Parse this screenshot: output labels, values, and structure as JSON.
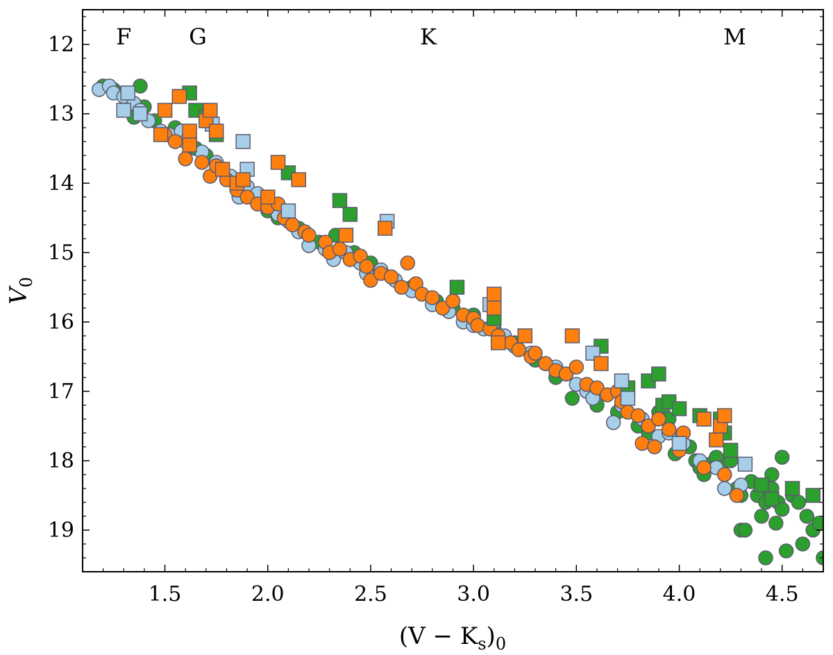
{
  "chart_data": {
    "type": "scatter",
    "title": "",
    "xlabel": "(V − K",
    "xlabel_sub": "s",
    "xlabel_tail": ")",
    "xlabel_sub2": "0",
    "ylabel": "V",
    "ylabel_sub": "0",
    "xlim": [
      1.1,
      4.7
    ],
    "ylim": [
      19.6,
      11.5
    ],
    "y_inverted": true,
    "grid": false,
    "x_ticks": [
      1.5,
      2.0,
      2.5,
      3.0,
      3.5,
      4.0,
      4.5
    ],
    "x_tick_labels": [
      "1.5",
      "2.0",
      "2.5",
      "3.0",
      "3.5",
      "4.0",
      "4.5"
    ],
    "y_ticks": [
      12,
      13,
      14,
      15,
      16,
      17,
      18,
      19
    ],
    "y_tick_labels": [
      "12",
      "13",
      "14",
      "15",
      "16",
      "17",
      "18",
      "19"
    ],
    "spectral_classes": [
      {
        "label": "F",
        "x": 1.3
      },
      {
        "label": "G",
        "x": 1.66
      },
      {
        "label": "K",
        "x": 2.78
      },
      {
        "label": "M",
        "x": 4.27
      }
    ],
    "colors": {
      "green": "#2ca02c",
      "blue": "#a6cee8",
      "orange": "#ff7f0e",
      "edge": "#5a5a6e"
    },
    "series": [
      {
        "name": "green-circles",
        "color": "green",
        "marker": "circle",
        "points": [
          [
            1.2,
            12.6
          ],
          [
            1.25,
            12.65
          ],
          [
            1.3,
            12.7
          ],
          [
            1.32,
            12.8
          ],
          [
            1.38,
            12.6
          ],
          [
            1.35,
            13.05
          ],
          [
            1.4,
            12.9
          ],
          [
            1.45,
            13.1
          ],
          [
            1.55,
            13.2
          ],
          [
            1.65,
            13.5
          ],
          [
            1.7,
            13.6
          ],
          [
            1.8,
            13.9
          ],
          [
            1.9,
            14.1
          ],
          [
            2.0,
            14.4
          ],
          [
            2.05,
            14.5
          ],
          [
            2.15,
            14.65
          ],
          [
            2.25,
            14.85
          ],
          [
            2.33,
            14.75
          ],
          [
            2.42,
            15.0
          ],
          [
            2.5,
            15.15
          ],
          [
            2.6,
            15.35
          ],
          [
            2.7,
            15.5
          ],
          [
            2.82,
            15.7
          ],
          [
            2.9,
            15.8
          ],
          [
            3.0,
            15.9
          ],
          [
            3.1,
            16.1
          ],
          [
            3.2,
            16.3
          ],
          [
            3.3,
            16.55
          ],
          [
            3.4,
            16.8
          ],
          [
            3.48,
            17.1
          ],
          [
            3.55,
            17.0
          ],
          [
            3.6,
            17.2
          ],
          [
            3.7,
            17.3
          ],
          [
            3.75,
            17.0
          ],
          [
            3.8,
            17.5
          ],
          [
            3.85,
            17.6
          ],
          [
            3.9,
            17.3
          ],
          [
            3.95,
            17.4
          ],
          [
            3.98,
            17.9
          ],
          [
            4.0,
            17.7
          ],
          [
            4.05,
            17.8
          ],
          [
            4.08,
            18.0
          ],
          [
            4.1,
            18.1
          ],
          [
            4.12,
            18.2
          ],
          [
            4.15,
            18.05
          ],
          [
            4.18,
            17.95
          ],
          [
            4.2,
            18.1
          ],
          [
            4.22,
            18.2
          ],
          [
            4.25,
            18.0
          ],
          [
            4.28,
            18.4
          ],
          [
            4.3,
            18.5
          ],
          [
            4.3,
            19.0
          ],
          [
            4.32,
            19.0
          ],
          [
            4.35,
            18.3
          ],
          [
            4.38,
            18.5
          ],
          [
            4.4,
            18.8
          ],
          [
            4.42,
            18.6
          ],
          [
            4.42,
            19.4
          ],
          [
            4.45,
            18.2
          ],
          [
            4.45,
            18.4
          ],
          [
            4.47,
            18.9
          ],
          [
            4.48,
            18.6
          ],
          [
            4.5,
            17.95
          ],
          [
            4.5,
            18.7
          ],
          [
            4.52,
            19.3
          ],
          [
            4.55,
            18.5
          ],
          [
            4.58,
            18.6
          ],
          [
            4.6,
            19.2
          ],
          [
            4.62,
            18.8
          ],
          [
            4.65,
            19.0
          ],
          [
            4.68,
            18.9
          ],
          [
            4.7,
            19.4
          ]
        ]
      },
      {
        "name": "blue-circles",
        "color": "blue",
        "marker": "circle",
        "points": [
          [
            1.18,
            12.65
          ],
          [
            1.23,
            12.6
          ],
          [
            1.25,
            12.7
          ],
          [
            1.3,
            12.75
          ],
          [
            1.35,
            12.85
          ],
          [
            1.38,
            12.95
          ],
          [
            1.42,
            13.1
          ],
          [
            1.48,
            13.25
          ],
          [
            1.52,
            13.3
          ],
          [
            1.58,
            13.25
          ],
          [
            1.6,
            13.4
          ],
          [
            1.62,
            13.35
          ],
          [
            1.68,
            13.55
          ],
          [
            1.75,
            13.7
          ],
          [
            1.82,
            13.9
          ],
          [
            1.86,
            14.2
          ],
          [
            1.9,
            14.05
          ],
          [
            1.95,
            14.15
          ],
          [
            2.05,
            14.45
          ],
          [
            2.1,
            14.55
          ],
          [
            2.15,
            14.7
          ],
          [
            2.2,
            14.9
          ],
          [
            2.28,
            14.95
          ],
          [
            2.32,
            15.1
          ],
          [
            2.38,
            15.0
          ],
          [
            2.45,
            15.15
          ],
          [
            2.48,
            15.3
          ],
          [
            2.55,
            15.25
          ],
          [
            2.62,
            15.4
          ],
          [
            2.7,
            15.55
          ],
          [
            2.8,
            15.75
          ],
          [
            2.88,
            15.85
          ],
          [
            2.95,
            16.0
          ],
          [
            3.0,
            16.05
          ],
          [
            3.05,
            16.1
          ],
          [
            3.1,
            16.0
          ],
          [
            3.15,
            16.2
          ],
          [
            3.2,
            16.35
          ],
          [
            3.28,
            16.45
          ],
          [
            3.35,
            16.6
          ],
          [
            3.4,
            16.65
          ],
          [
            3.45,
            16.75
          ],
          [
            3.5,
            16.9
          ],
          [
            3.55,
            17.0
          ],
          [
            3.58,
            17.1
          ],
          [
            3.68,
            17.45
          ],
          [
            3.72,
            17.2
          ],
          [
            3.82,
            17.4
          ],
          [
            3.85,
            17.5
          ],
          [
            3.9,
            17.65
          ],
          [
            3.95,
            17.6
          ],
          [
            4.02,
            17.75
          ],
          [
            4.1,
            18.0
          ],
          [
            4.18,
            18.1
          ],
          [
            4.22,
            18.4
          ],
          [
            4.3,
            18.35
          ]
        ]
      },
      {
        "name": "orange-circles",
        "color": "orange",
        "marker": "circle",
        "points": [
          [
            1.5,
            13.3
          ],
          [
            1.55,
            13.4
          ],
          [
            1.6,
            13.65
          ],
          [
            1.62,
            13.45
          ],
          [
            1.68,
            13.7
          ],
          [
            1.72,
            13.9
          ],
          [
            1.75,
            13.75
          ],
          [
            1.8,
            13.95
          ],
          [
            1.85,
            14.1
          ],
          [
            1.9,
            14.2
          ],
          [
            1.95,
            14.3
          ],
          [
            2.0,
            14.35
          ],
          [
            2.05,
            14.3
          ],
          [
            2.08,
            14.5
          ],
          [
            2.12,
            14.6
          ],
          [
            2.18,
            14.7
          ],
          [
            2.2,
            14.75
          ],
          [
            2.28,
            14.85
          ],
          [
            2.3,
            15.0
          ],
          [
            2.35,
            14.95
          ],
          [
            2.4,
            15.1
          ],
          [
            2.45,
            15.05
          ],
          [
            2.48,
            15.2
          ],
          [
            2.5,
            15.4
          ],
          [
            2.55,
            15.3
          ],
          [
            2.6,
            15.35
          ],
          [
            2.65,
            15.5
          ],
          [
            2.68,
            15.15
          ],
          [
            2.72,
            15.45
          ],
          [
            2.75,
            15.6
          ],
          [
            2.8,
            15.65
          ],
          [
            2.85,
            15.8
          ],
          [
            2.9,
            15.7
          ],
          [
            2.95,
            15.9
          ],
          [
            3.0,
            15.95
          ],
          [
            3.02,
            16.05
          ],
          [
            3.08,
            16.1
          ],
          [
            3.12,
            16.2
          ],
          [
            3.18,
            16.3
          ],
          [
            3.22,
            16.4
          ],
          [
            3.28,
            16.5
          ],
          [
            3.3,
            16.45
          ],
          [
            3.35,
            16.6
          ],
          [
            3.4,
            16.7
          ],
          [
            3.45,
            16.75
          ],
          [
            3.5,
            16.65
          ],
          [
            3.55,
            16.9
          ],
          [
            3.6,
            16.95
          ],
          [
            3.65,
            17.05
          ],
          [
            3.7,
            17.0
          ],
          [
            3.72,
            17.15
          ],
          [
            3.75,
            17.3
          ],
          [
            3.8,
            17.35
          ],
          [
            3.82,
            17.75
          ],
          [
            3.85,
            17.5
          ],
          [
            3.88,
            17.8
          ],
          [
            3.9,
            17.4
          ],
          [
            3.95,
            17.55
          ],
          [
            4.0,
            17.85
          ],
          [
            4.02,
            17.6
          ],
          [
            4.12,
            18.1
          ],
          [
            4.22,
            18.2
          ],
          [
            4.28,
            18.5
          ]
        ]
      },
      {
        "name": "green-squares",
        "color": "green",
        "marker": "square",
        "points": [
          [
            1.62,
            12.7
          ],
          [
            1.65,
            12.95
          ],
          [
            1.7,
            13.05
          ],
          [
            1.75,
            13.3
          ],
          [
            2.1,
            13.85
          ],
          [
            2.35,
            14.25
          ],
          [
            2.4,
            14.45
          ],
          [
            2.92,
            15.5
          ],
          [
            3.1,
            15.95
          ],
          [
            3.62,
            16.35
          ],
          [
            3.75,
            16.95
          ],
          [
            3.85,
            16.85
          ],
          [
            3.9,
            16.75
          ],
          [
            3.92,
            17.2
          ],
          [
            3.95,
            17.15
          ],
          [
            4.0,
            17.25
          ],
          [
            4.1,
            17.35
          ],
          [
            4.2,
            17.4
          ],
          [
            4.22,
            17.6
          ],
          [
            4.25,
            17.85
          ],
          [
            4.4,
            18.35
          ],
          [
            4.45,
            18.55
          ],
          [
            4.55,
            18.4
          ],
          [
            4.65,
            18.5
          ]
        ]
      },
      {
        "name": "blue-squares",
        "color": "blue",
        "marker": "square",
        "points": [
          [
            1.3,
            12.95
          ],
          [
            1.32,
            12.7
          ],
          [
            1.38,
            13.0
          ],
          [
            1.73,
            13.15
          ],
          [
            1.88,
            13.4
          ],
          [
            1.9,
            13.8
          ],
          [
            2.1,
            14.4
          ],
          [
            2.58,
            14.55
          ],
          [
            3.08,
            15.75
          ],
          [
            3.58,
            16.45
          ],
          [
            3.72,
            16.85
          ],
          [
            3.75,
            17.1
          ],
          [
            4.0,
            17.75
          ],
          [
            4.32,
            18.05
          ]
        ]
      },
      {
        "name": "orange-squares",
        "color": "orange",
        "marker": "square",
        "points": [
          [
            1.48,
            13.3
          ],
          [
            1.5,
            12.95
          ],
          [
            1.57,
            12.75
          ],
          [
            1.62,
            13.25
          ],
          [
            1.62,
            13.45
          ],
          [
            1.7,
            13.1
          ],
          [
            1.72,
            12.95
          ],
          [
            1.75,
            13.25
          ],
          [
            1.78,
            13.8
          ],
          [
            1.85,
            14.0
          ],
          [
            1.88,
            13.95
          ],
          [
            2.0,
            14.2
          ],
          [
            2.05,
            13.7
          ],
          [
            2.15,
            13.95
          ],
          [
            2.38,
            14.75
          ],
          [
            2.57,
            14.65
          ],
          [
            3.1,
            15.6
          ],
          [
            3.1,
            15.8
          ],
          [
            3.12,
            16.3
          ],
          [
            3.25,
            16.2
          ],
          [
            3.48,
            16.2
          ],
          [
            3.62,
            16.6
          ],
          [
            4.12,
            17.4
          ],
          [
            4.18,
            17.7
          ],
          [
            4.2,
            17.5
          ],
          [
            4.22,
            17.35
          ]
        ]
      }
    ]
  }
}
